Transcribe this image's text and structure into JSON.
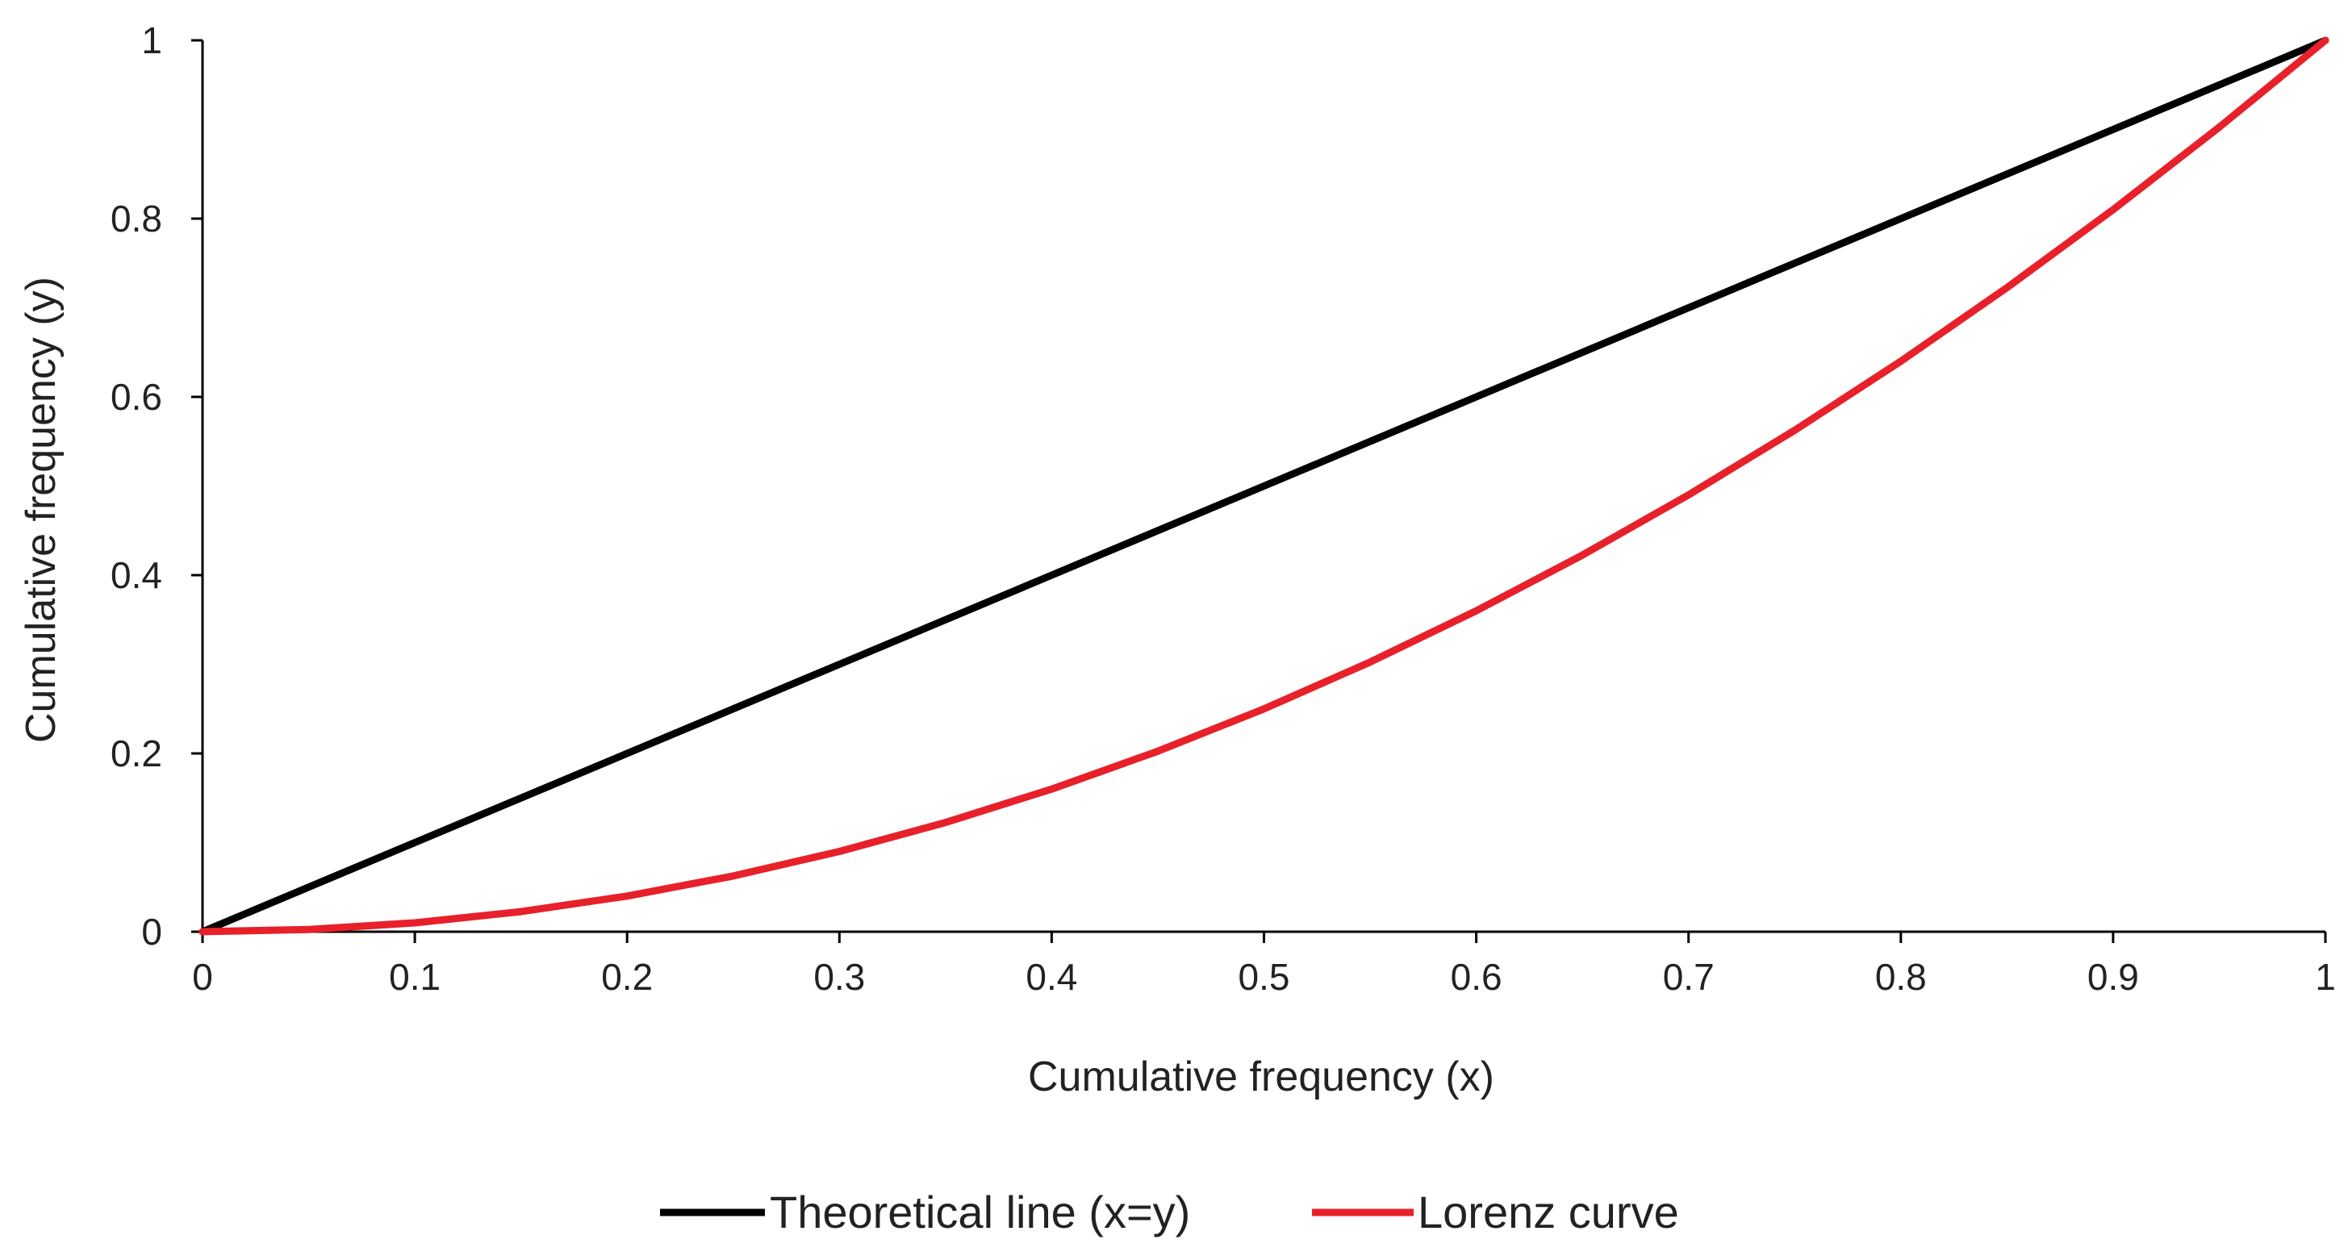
{
  "chart_data": {
    "type": "line",
    "title": "",
    "xlabel": "Cumulative frequency (x)",
    "ylabel": "Cumulative frequency  (y)",
    "xlim": [
      0,
      1
    ],
    "ylim": [
      0,
      1
    ],
    "x_ticks": [
      "0",
      "0.1",
      "0.2",
      "0.3",
      "0.4",
      "0.5",
      "0.6",
      "0.7",
      "0.8",
      "0.9",
      "1"
    ],
    "y_ticks": [
      "0",
      "0.2",
      "0.4",
      "0.6",
      "0.8",
      "1"
    ],
    "grid": false,
    "legend_position": "bottom-center",
    "series": [
      {
        "name": "Theoretical line (x=y)",
        "color": "#000000",
        "x": [
          0,
          0.1,
          0.2,
          0.3,
          0.4,
          0.5,
          0.6,
          0.7,
          0.8,
          0.9,
          1
        ],
        "y": [
          0,
          0.1,
          0.2,
          0.3,
          0.4,
          0.5,
          0.6,
          0.7,
          0.8,
          0.9,
          1
        ]
      },
      {
        "name": "Lorenz curve",
        "color": "#e8202a",
        "x": [
          0,
          0.05,
          0.1,
          0.15,
          0.2,
          0.25,
          0.3,
          0.35,
          0.4,
          0.45,
          0.5,
          0.55,
          0.6,
          0.65,
          0.7,
          0.75,
          0.8,
          0.85,
          0.9,
          0.95,
          1
        ],
        "y": [
          0,
          0.0025,
          0.01,
          0.0225,
          0.04,
          0.0625,
          0.09,
          0.1225,
          0.16,
          0.2025,
          0.25,
          0.3025,
          0.36,
          0.4225,
          0.49,
          0.5625,
          0.64,
          0.7225,
          0.81,
          0.9025,
          1
        ]
      }
    ]
  }
}
